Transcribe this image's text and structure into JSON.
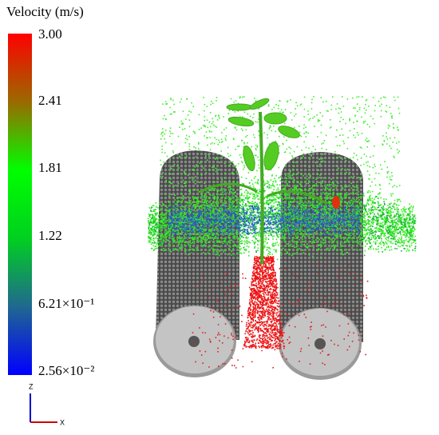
{
  "legend": {
    "title": "Velocity (m/s)",
    "labels": [
      "3.00",
      "2.41",
      "1.81",
      "1.22",
      "6.21×10⁻¹",
      "2.56×10⁻²"
    ]
  },
  "axes": {
    "z": "Z",
    "x": "X"
  }
}
